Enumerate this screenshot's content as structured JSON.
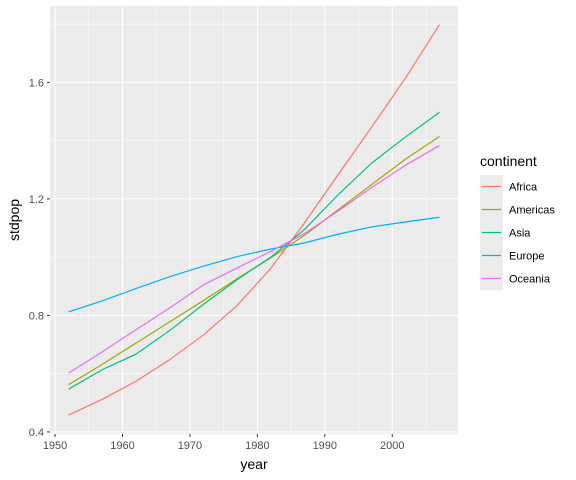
{
  "chart_data": {
    "type": "line",
    "xlabel": "year",
    "ylabel": "stdpop",
    "xlim": [
      1949.25,
      2009.75
    ],
    "ylim": [
      0.393,
      1.862
    ],
    "x_ticks": [
      1950,
      1960,
      1970,
      1980,
      1990,
      2000
    ],
    "y_ticks": [
      0.4,
      0.8,
      1.2,
      1.6
    ],
    "x_tick_labels": [
      "1950",
      "1960",
      "1970",
      "1980",
      "1990",
      "2000"
    ],
    "y_tick_labels": [
      "0.4",
      "0.8",
      "1.2",
      "1.6"
    ],
    "x": [
      1952,
      1957,
      1962,
      1967,
      1972,
      1977,
      1982,
      1987,
      1992,
      1997,
      2002,
      2007
    ],
    "legend_title": "continent",
    "legend_position": "right",
    "panel_background": "#ebebeb",
    "grid": true,
    "series": [
      {
        "name": "Africa",
        "color": "#F8766D",
        "values": [
          0.458,
          0.512,
          0.574,
          0.648,
          0.733,
          0.834,
          0.962,
          1.118,
          1.284,
          1.448,
          1.616,
          1.798
        ]
      },
      {
        "name": "Americas",
        "color": "#A3A500",
        "values": [
          0.562,
          0.632,
          0.705,
          0.778,
          0.851,
          0.926,
          0.998,
          1.075,
          1.163,
          1.25,
          1.337,
          1.414
        ]
      },
      {
        "name": "Asia",
        "color": "#00BF7D",
        "values": [
          0.547,
          0.614,
          0.667,
          0.748,
          0.838,
          0.923,
          1.0,
          1.095,
          1.215,
          1.324,
          1.413,
          1.497
        ]
      },
      {
        "name": "Europe",
        "color": "#00B0F6",
        "values": [
          0.812,
          0.85,
          0.892,
          0.933,
          0.969,
          1.002,
          1.028,
          1.049,
          1.079,
          1.104,
          1.121,
          1.137
        ]
      },
      {
        "name": "Oceania",
        "color": "#E76BF3",
        "values": [
          0.602,
          0.675,
          0.751,
          0.826,
          0.905,
          0.963,
          1.02,
          1.081,
          1.159,
          1.24,
          1.316,
          1.383
        ]
      }
    ]
  }
}
